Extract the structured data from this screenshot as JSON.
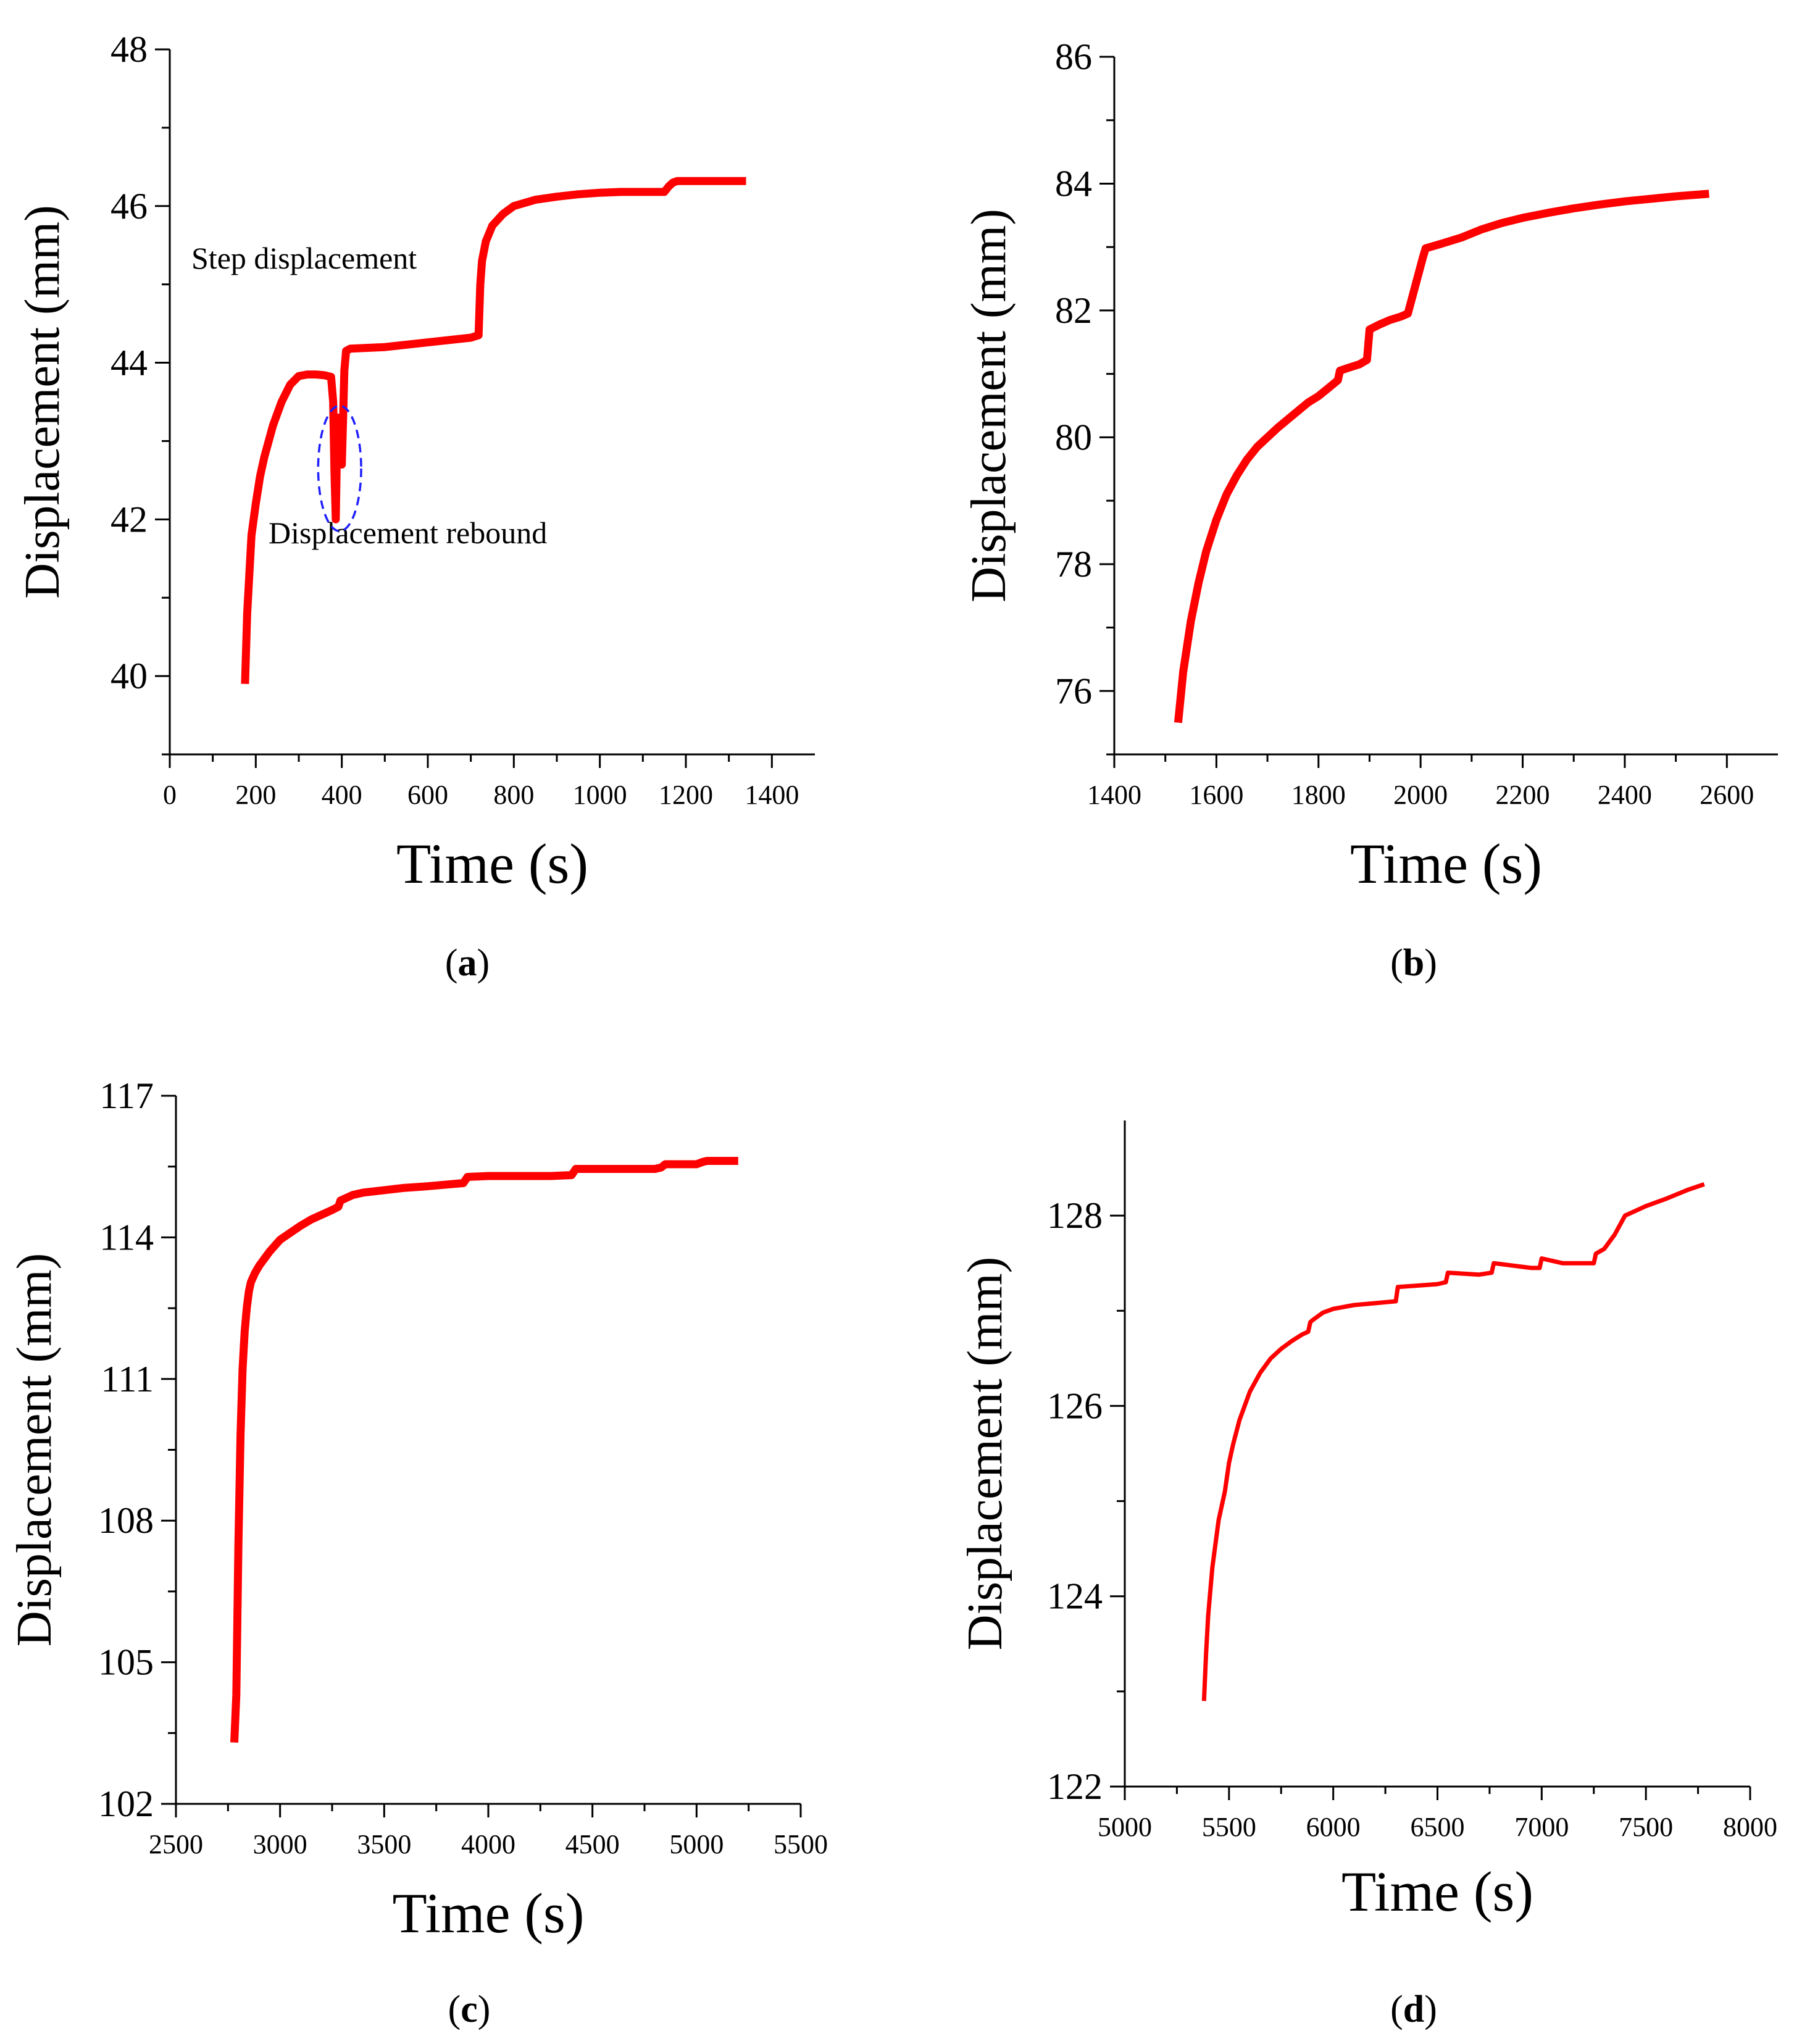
{
  "colors": {
    "series": "#ff0000",
    "axis": "#000000",
    "annotation_circle": "#1f1fff"
  },
  "chart_data": [
    {
      "type": "line",
      "panel": "a",
      "panel_label": "a",
      "xlabel": "Time (s)",
      "ylabel": "Displacement (mm)",
      "xlim": [
        0,
        1500
      ],
      "ylim": [
        39,
        48
      ],
      "xticks": [
        0,
        200,
        400,
        600,
        800,
        1000,
        1200,
        1400
      ],
      "yticks": [
        40,
        42,
        44,
        46,
        48
      ],
      "annotations": [
        {
          "text": "Step displacement"
        },
        {
          "text": "Displacement rebound",
          "circle_center": [
            395,
            42.65
          ],
          "circle_radius_x": 50,
          "circle_radius_y": 0.8
        }
      ],
      "series": [
        {
          "name": "Displacement",
          "x": [
            175,
            180,
            185,
            190,
            200,
            210,
            220,
            240,
            260,
            280,
            300,
            320,
            340,
            360,
            375,
            380,
            383,
            386,
            390,
            393,
            396,
            400,
            403,
            406,
            410,
            420,
            500,
            600,
            700,
            718,
            722,
            726,
            735,
            750,
            775,
            800,
            850,
            900,
            950,
            1000,
            1050,
            1100,
            1150,
            1160,
            1170,
            1180,
            1200,
            1250,
            1300,
            1340
          ],
          "y": [
            39.9,
            40.8,
            41.3,
            41.8,
            42.2,
            42.55,
            42.8,
            43.2,
            43.5,
            43.72,
            43.83,
            43.85,
            43.85,
            43.84,
            43.82,
            43.5,
            42.6,
            42.0,
            43.3,
            42.8,
            43.0,
            42.7,
            43.3,
            43.9,
            44.15,
            44.18,
            44.2,
            44.26,
            44.32,
            44.35,
            45.0,
            45.3,
            45.55,
            45.75,
            45.9,
            46.0,
            46.08,
            46.12,
            46.15,
            46.17,
            46.18,
            46.18,
            46.18,
            46.25,
            46.3,
            46.32,
            46.32,
            46.32,
            46.32,
            46.32
          ]
        }
      ]
    },
    {
      "type": "line",
      "panel": "b",
      "panel_label": "b",
      "xlabel": "Time (s)",
      "ylabel": "Displacement (mm)",
      "xlim": [
        1400,
        2700
      ],
      "ylim": [
        75,
        86
      ],
      "xticks": [
        1400,
        1600,
        1800,
        2000,
        2200,
        2400,
        2600
      ],
      "yticks": [
        76,
        78,
        80,
        82,
        84,
        86
      ],
      "series": [
        {
          "name": "Displacement",
          "x": [
            1525,
            1535,
            1550,
            1565,
            1580,
            1600,
            1620,
            1640,
            1660,
            1680,
            1700,
            1720,
            1750,
            1780,
            1800,
            1820,
            1838,
            1842,
            1860,
            1880,
            1895,
            1900,
            1920,
            1940,
            1960,
            1975,
            1990,
            2005,
            2010,
            2040,
            2080,
            2120,
            2160,
            2200,
            2250,
            2300,
            2350,
            2400,
            2450,
            2500,
            2565
          ],
          "y": [
            75.5,
            76.3,
            77.1,
            77.7,
            78.2,
            78.7,
            79.1,
            79.4,
            79.65,
            79.85,
            80.0,
            80.15,
            80.35,
            80.55,
            80.65,
            80.78,
            80.9,
            81.05,
            81.1,
            81.15,
            81.22,
            81.7,
            81.78,
            81.85,
            81.9,
            81.95,
            82.4,
            82.85,
            82.98,
            83.05,
            83.15,
            83.28,
            83.38,
            83.46,
            83.54,
            83.61,
            83.67,
            83.72,
            83.76,
            83.8,
            83.84
          ]
        }
      ]
    },
    {
      "type": "line",
      "panel": "c",
      "panel_label": "c",
      "xlabel": "Time (s)",
      "ylabel": "Displacement (mm)",
      "xlim": [
        2500,
        5500
      ],
      "ylim": [
        102,
        117
      ],
      "xticks": [
        2500,
        3000,
        3500,
        4000,
        4500,
        5000,
        5500
      ],
      "yticks": [
        102,
        105,
        108,
        111,
        114,
        117
      ],
      "series": [
        {
          "name": "Displacement",
          "x": [
            2780,
            2790,
            2800,
            2810,
            2820,
            2830,
            2840,
            2850,
            2860,
            2880,
            2900,
            2950,
            3000,
            3050,
            3100,
            3150,
            3200,
            3250,
            3280,
            3290,
            3350,
            3400,
            3500,
            3600,
            3700,
            3800,
            3880,
            3900,
            4000,
            4100,
            4200,
            4300,
            4400,
            4420,
            4600,
            4800,
            4830,
            4850,
            5000,
            5030,
            5050,
            5200
          ],
          "y": [
            103.3,
            104.3,
            107.5,
            109.8,
            111.2,
            112.0,
            112.5,
            112.85,
            113.05,
            113.25,
            113.4,
            113.7,
            113.95,
            114.1,
            114.25,
            114.38,
            114.48,
            114.58,
            114.65,
            114.78,
            114.9,
            114.95,
            115.0,
            115.05,
            115.08,
            115.12,
            115.15,
            115.28,
            115.3,
            115.3,
            115.3,
            115.3,
            115.32,
            115.45,
            115.45,
            115.45,
            115.48,
            115.55,
            115.55,
            115.6,
            115.62,
            115.62
          ]
        }
      ]
    },
    {
      "type": "line",
      "panel": "d",
      "panel_label": "d",
      "xlabel": "Time (s)",
      "ylabel": "Displacement (mm)",
      "xlim": [
        5000,
        8000
      ],
      "ylim": [
        122,
        129
      ],
      "xticks": [
        5000,
        5500,
        6000,
        6500,
        7000,
        7500,
        8000
      ],
      "yticks": [
        122,
        124,
        126,
        128
      ],
      "series": [
        {
          "name": "Displacement",
          "x": [
            5380,
            5390,
            5400,
            5420,
            5450,
            5480,
            5500,
            5520,
            5550,
            5600,
            5650,
            5700,
            5750,
            5800,
            5850,
            5880,
            5890,
            5900,
            5950,
            6000,
            6100,
            6200,
            6300,
            6310,
            6500,
            6540,
            6550,
            6700,
            6760,
            6770,
            6950,
            6990,
            7000,
            7100,
            7250,
            7260,
            7300,
            7350,
            7400,
            7450,
            7500,
            7600,
            7700,
            7780
          ],
          "y": [
            122.9,
            123.4,
            123.8,
            124.3,
            124.8,
            125.1,
            125.4,
            125.6,
            125.85,
            126.15,
            126.35,
            126.5,
            126.6,
            126.68,
            126.75,
            126.78,
            126.88,
            126.9,
            126.98,
            127.02,
            127.06,
            127.08,
            127.1,
            127.25,
            127.28,
            127.3,
            127.4,
            127.38,
            127.4,
            127.5,
            127.45,
            127.45,
            127.55,
            127.5,
            127.5,
            127.6,
            127.65,
            127.8,
            128.0,
            128.05,
            128.1,
            128.18,
            128.27,
            128.33
          ]
        }
      ]
    }
  ]
}
